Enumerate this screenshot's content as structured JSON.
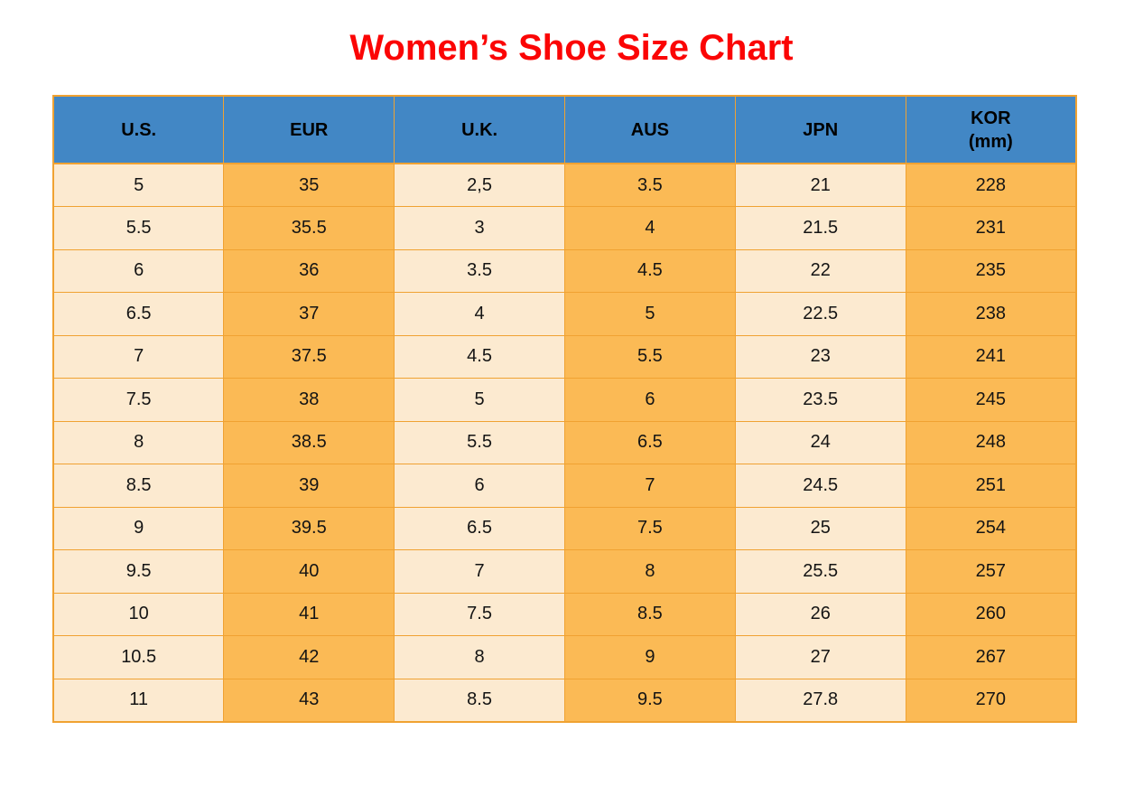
{
  "title": "Women’s Shoe Size Chart",
  "colors": {
    "title": "#fb0505",
    "header_bg": "#4287c5",
    "header_text": "#000000",
    "cell_text": "#141414",
    "cell_light": "#fcead0",
    "cell_orange": "#fbba55",
    "border": "#f0a232",
    "page_bg": "#ffffff"
  },
  "table": {
    "columns": [
      {
        "id": "us",
        "label": "U.S."
      },
      {
        "id": "eur",
        "label": "EUR"
      },
      {
        "id": "uk",
        "label": "U.K."
      },
      {
        "id": "aus",
        "label": "AUS"
      },
      {
        "id": "jpn",
        "label": "JPN"
      },
      {
        "id": "kor",
        "label": "KOR",
        "sublabel": "(mm)"
      }
    ],
    "rows": [
      [
        "5",
        "35",
        "2,5",
        "3.5",
        "21",
        "228"
      ],
      [
        "5.5",
        "35.5",
        "3",
        "4",
        "21.5",
        "231"
      ],
      [
        "6",
        "36",
        "3.5",
        "4.5",
        "22",
        "235"
      ],
      [
        "6.5",
        "37",
        "4",
        "5",
        "22.5",
        "238"
      ],
      [
        "7",
        "37.5",
        "4.5",
        "5.5",
        "23",
        "241"
      ],
      [
        "7.5",
        "38",
        "5",
        "6",
        "23.5",
        "245"
      ],
      [
        "8",
        "38.5",
        "5.5",
        "6.5",
        "24",
        "248"
      ],
      [
        "8.5",
        "39",
        "6",
        "7",
        "24.5",
        "251"
      ],
      [
        "9",
        "39.5",
        "6.5",
        "7.5",
        "25",
        "254"
      ],
      [
        "9.5",
        "40",
        "7",
        "8",
        "25.5",
        "257"
      ],
      [
        "10",
        "41",
        "7.5",
        "8.5",
        "26",
        "260"
      ],
      [
        "10.5",
        "42",
        "8",
        "9",
        "27",
        "267"
      ],
      [
        "11",
        "43",
        "8.5",
        "9.5",
        "27.8",
        "270"
      ]
    ]
  },
  "chart_data": {
    "type": "table",
    "title": "Women’s Shoe Size Chart",
    "columns": [
      "U.S.",
      "EUR",
      "U.K.",
      "AUS",
      "JPN",
      "KOR (mm)"
    ],
    "rows": [
      [
        "5",
        "35",
        "2,5",
        "3.5",
        "21",
        "228"
      ],
      [
        "5.5",
        "35.5",
        "3",
        "4",
        "21.5",
        "231"
      ],
      [
        "6",
        "36",
        "3.5",
        "4.5",
        "22",
        "235"
      ],
      [
        "6.5",
        "37",
        "4",
        "5",
        "22.5",
        "238"
      ],
      [
        "7",
        "37.5",
        "4.5",
        "5.5",
        "23",
        "241"
      ],
      [
        "7.5",
        "38",
        "5",
        "6",
        "23.5",
        "245"
      ],
      [
        "8",
        "38.5",
        "5.5",
        "6.5",
        "24",
        "248"
      ],
      [
        "8.5",
        "39",
        "6",
        "7",
        "24.5",
        "251"
      ],
      [
        "9",
        "39.5",
        "6.5",
        "7.5",
        "25",
        "254"
      ],
      [
        "9.5",
        "40",
        "7",
        "8",
        "25.5",
        "257"
      ],
      [
        "10",
        "41",
        "7.5",
        "8.5",
        "26",
        "260"
      ],
      [
        "10.5",
        "42",
        "8",
        "9",
        "27",
        "267"
      ],
      [
        "11",
        "43",
        "8.5",
        "9.5",
        "27.8",
        "270"
      ]
    ]
  }
}
